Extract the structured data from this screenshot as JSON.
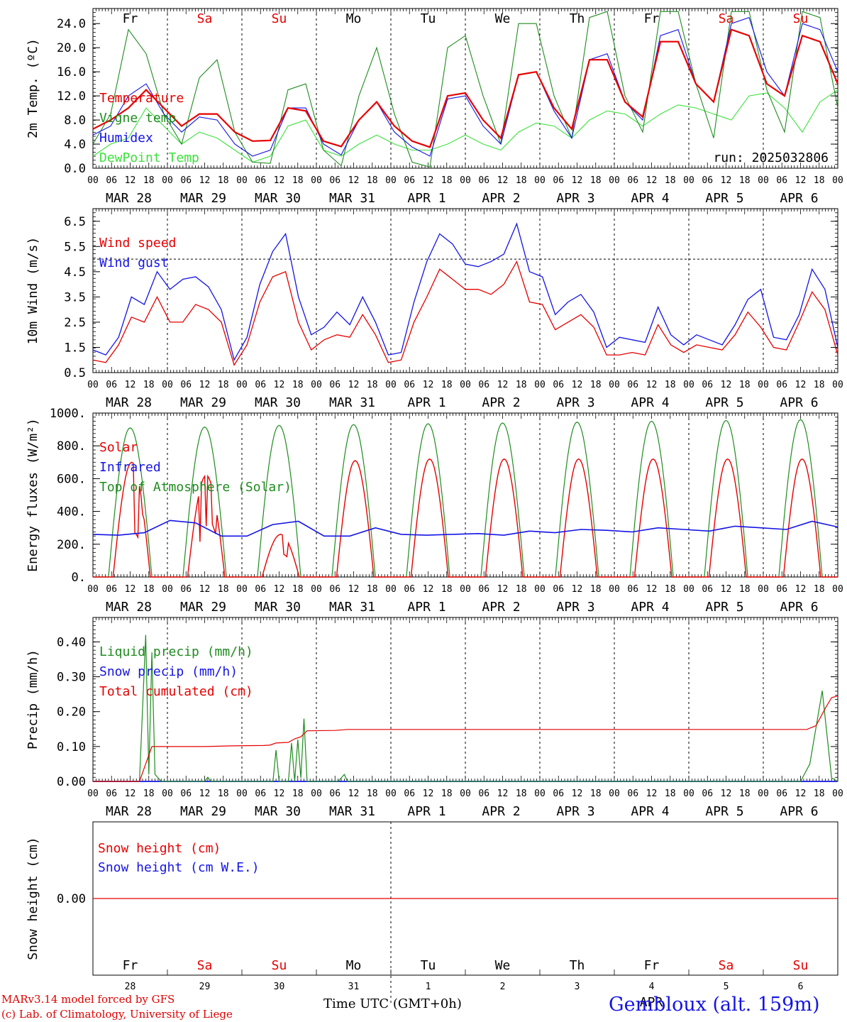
{
  "days": [
    {
      "dow": "Fr",
      "month": "MAR",
      "day": "28",
      "weekend": false
    },
    {
      "dow": "Sa",
      "month": "MAR",
      "day": "29",
      "weekend": true
    },
    {
      "dow": "Su",
      "month": "MAR",
      "day": "30",
      "weekend": true
    },
    {
      "dow": "Mo",
      "month": "MAR",
      "day": "31",
      "weekend": false
    },
    {
      "dow": "Tu",
      "month": "APR",
      "day": "1",
      "weekend": false
    },
    {
      "dow": "We",
      "month": "APR",
      "day": "2",
      "weekend": false
    },
    {
      "dow": "Th",
      "month": "APR",
      "day": "3",
      "weekend": false
    },
    {
      "dow": "Fr",
      "month": "APR",
      "day": "4",
      "weekend": false
    },
    {
      "dow": "Sa",
      "month": "APR",
      "day": "5",
      "weekend": true
    },
    {
      "dow": "Su",
      "month": "APR",
      "day": "6",
      "weekend": true
    }
  ],
  "hour_labels": [
    "00",
    "06",
    "12",
    "18"
  ],
  "final_hour_label": "00",
  "colors": {
    "red": "#e60000",
    "green": "#1e8c1e",
    "blue": "#1414e6",
    "lightgreen": "#3ce13c",
    "weekend": "#e60000",
    "weekday": "#000000"
  },
  "chart_data": [
    {
      "type": "line",
      "id": "temp",
      "ylabel": "2m Temp. (ºC)",
      "ylim": [
        0,
        26.5
      ],
      "yticks": [
        "0.0",
        "4.0",
        "8.0",
        "12.0",
        "16.0",
        "20.0",
        "24.0"
      ],
      "yticks_values": [
        0,
        4,
        8,
        12,
        16,
        20,
        24
      ],
      "show_day_names": true,
      "run_label": "run: 2025032806",
      "x_hours_step": 12,
      "series": [
        {
          "name": "Temperature",
          "color": "red",
          "values": [
            6.5,
            8,
            10,
            13,
            10,
            7,
            9,
            9,
            6,
            4.5,
            4.6,
            10,
            9.5,
            4.5,
            3.6,
            8,
            11,
            7,
            4.5,
            3.5,
            12,
            12.5,
            8,
            5,
            15.5,
            16,
            10,
            6.5,
            18,
            18,
            11,
            8.5,
            21,
            21,
            14,
            11,
            23,
            22,
            14,
            12,
            22,
            21,
            14
          ]
        },
        {
          "name": "Vigne temp",
          "color": "green",
          "values": [
            4,
            9,
            23,
            19,
            9,
            4,
            15,
            18,
            6,
            1,
            0.8,
            13,
            14,
            3,
            0.4,
            12,
            20,
            9,
            1,
            0.2,
            20,
            22,
            12,
            4,
            24,
            24,
            12,
            5,
            25,
            26,
            12,
            6,
            26,
            26,
            14,
            5,
            26,
            26,
            13,
            6,
            26,
            25,
            10
          ]
        },
        {
          "name": "Humidex",
          "color": "blue",
          "values": [
            5.5,
            7,
            12,
            14,
            9,
            6,
            8.5,
            8,
            4,
            2,
            3,
            10,
            10,
            4,
            2.2,
            8,
            11,
            6,
            3.5,
            2,
            11.5,
            12,
            7,
            4,
            15.5,
            16,
            9.5,
            5,
            18,
            19,
            11,
            8,
            22,
            23,
            14,
            11,
            24,
            25,
            16,
            12,
            24,
            23,
            16
          ]
        },
        {
          "name": "DewPoint Temp",
          "color": "lightgreen",
          "values": [
            2,
            4,
            5,
            10,
            7,
            4,
            6,
            5,
            3,
            1,
            2,
            7,
            8,
            3,
            2,
            4,
            5.5,
            4,
            3,
            3,
            4,
            5.5,
            4,
            3,
            6,
            7.5,
            7,
            5,
            8,
            9.5,
            9,
            7,
            9,
            10.5,
            10,
            9,
            8,
            12,
            12.5,
            10,
            6,
            11,
            13
          ]
        }
      ]
    },
    {
      "type": "line",
      "id": "wind",
      "ylabel": "10m Wind (m/s)",
      "ylim": [
        0.5,
        7
      ],
      "yticks": [
        "0.5",
        "1.5",
        "2.5",
        "3.5",
        "4.5",
        "5.5",
        "6.5"
      ],
      "yticks_values": [
        0.5,
        1.5,
        2.5,
        3.5,
        4.5,
        5.5,
        6.5
      ],
      "reference_line": 5,
      "show_day_names": false,
      "x_hours_step": 6,
      "series": [
        {
          "name": "Wind speed",
          "color": "red",
          "values": [
            1,
            0.9,
            1.6,
            2.7,
            2.5,
            3.5,
            2.5,
            2.5,
            3.2,
            3,
            2.5,
            0.8,
            1.6,
            3.3,
            4.3,
            4.5,
            2.5,
            1.4,
            1.8,
            2,
            1.9,
            2.8,
            2,
            0.9,
            1,
            2.5,
            3.5,
            4.6,
            4.2,
            3.8,
            3.8,
            3.6,
            4,
            4.9,
            3.3,
            3.2,
            2.2,
            2.5,
            2.8,
            2.3,
            1.2,
            1.2,
            1.3,
            1.2,
            2.4,
            1.6,
            1.3,
            1.6,
            1.5,
            1.4,
            2,
            2.9,
            2.3,
            1.5,
            1.4,
            2.5,
            3.7,
            3,
            1.2
          ]
        },
        {
          "name": "Wind gust",
          "color": "blue",
          "values": [
            1.4,
            1.2,
            1.9,
            3.5,
            3.2,
            4.5,
            3.8,
            4.2,
            4.3,
            3.9,
            3,
            1,
            1.9,
            4,
            5.3,
            6,
            3.5,
            2,
            2.3,
            2.9,
            2.4,
            3.5,
            2.5,
            1.2,
            1.3,
            3.3,
            4.9,
            6,
            5.6,
            4.8,
            4.7,
            4.9,
            5.2,
            6.4,
            4.5,
            4.3,
            2.8,
            3.3,
            3.6,
            2.9,
            1.5,
            1.9,
            1.8,
            1.7,
            3.1,
            2,
            1.6,
            2,
            1.8,
            1.6,
            2.4,
            3.4,
            3.8,
            1.9,
            1.8,
            2.8,
            4.6,
            3.8,
            1.5
          ]
        }
      ]
    },
    {
      "type": "line",
      "id": "energy",
      "ylabel": "Energy fluxes (W/m²)",
      "ylim": [
        0,
        1000
      ],
      "yticks": [
        "0.",
        "200.",
        "400.",
        "600.",
        "800.",
        "1000."
      ],
      "yticks_values": [
        0,
        200,
        400,
        600,
        800,
        1000
      ],
      "show_day_names": false,
      "series": [
        {
          "name": "Solar",
          "color": "red",
          "peaks": [
            700,
            620,
            260,
            710,
            720,
            720,
            720,
            720,
            720,
            720
          ]
        },
        {
          "name": "Infrared",
          "color": "blue",
          "values": [
            260,
            255,
            270,
            345,
            330,
            250,
            250,
            320,
            340,
            250,
            250,
            300,
            260,
            255,
            260,
            265,
            255,
            280,
            270,
            290,
            285,
            275,
            300,
            290,
            280,
            310,
            300,
            290,
            340,
            305
          ]
        },
        {
          "name": "Top of Atmosphere (Solar)",
          "color": "green",
          "peaks": [
            910,
            915,
            925,
            930,
            935,
            940,
            945,
            950,
            955,
            960
          ]
        }
      ]
    },
    {
      "type": "line",
      "id": "precip",
      "ylabel": "Precip (mm/h)",
      "ylim": [
        0,
        0.47
      ],
      "yticks": [
        "0.00",
        "0.10",
        "0.20",
        "0.30",
        "0.40"
      ],
      "yticks_values": [
        0,
        0.1,
        0.2,
        0.3,
        0.4
      ],
      "show_day_names": false,
      "series": [
        {
          "name": "Liquid precip (mm/h)",
          "color": "green",
          "points": [
            [
              0,
              0
            ],
            [
              15,
              0
            ],
            [
              17,
              0.42
            ],
            [
              18,
              0.02
            ],
            [
              19,
              0.37
            ],
            [
              20,
              0.02
            ],
            [
              22,
              0
            ],
            [
              36,
              0
            ],
            [
              37,
              0.012
            ],
            [
              38,
              0
            ],
            [
              58,
              0
            ],
            [
              59,
              0.09
            ],
            [
              60,
              0
            ],
            [
              63,
              0
            ],
            [
              64,
              0.11
            ],
            [
              65,
              0
            ],
            [
              66,
              0.12
            ],
            [
              67,
              0.01
            ],
            [
              68,
              0.18
            ],
            [
              69,
              0
            ],
            [
              79,
              0
            ],
            [
              81,
              0.02
            ],
            [
              82,
              0
            ],
            [
              228,
              0
            ],
            [
              231,
              0.05
            ],
            [
              235,
              0.26
            ],
            [
              238,
              0.01
            ],
            [
              240,
              0
            ]
          ]
        },
        {
          "name": "Snow precip (mm/h)",
          "color": "blue",
          "points": [
            [
              0,
              0
            ],
            [
              240,
              0
            ]
          ]
        },
        {
          "name": "Total cumulated (cm)",
          "color": "red",
          "points": [
            [
              0,
              0
            ],
            [
              15,
              0
            ],
            [
              17,
              0.05
            ],
            [
              19,
              0.1
            ],
            [
              36,
              0.1
            ],
            [
              45,
              0.102
            ],
            [
              55,
              0.103
            ],
            [
              57,
              0.104
            ],
            [
              59,
              0.11
            ],
            [
              63,
              0.112
            ],
            [
              65,
              0.122
            ],
            [
              67,
              0.128
            ],
            [
              69,
              0.145
            ],
            [
              78,
              0.146
            ],
            [
              82,
              0.149
            ],
            [
              230,
              0.149
            ],
            [
              233,
              0.16
            ],
            [
              236,
              0.21
            ],
            [
              238,
              0.24
            ],
            [
              240,
              0.245
            ]
          ]
        }
      ]
    },
    {
      "type": "line",
      "id": "snow",
      "ylabel": "Snow height (cm)",
      "ylim": [
        -0.1,
        0.1
      ],
      "yticks": [
        "0.00"
      ],
      "yticks_values": [
        0
      ],
      "show_day_names": true,
      "series": [
        {
          "name": "Snow height (cm)",
          "color": "red",
          "points": [
            [
              0,
              0
            ],
            [
              240,
              0
            ]
          ]
        },
        {
          "name": "Snow height (cm W.E.)",
          "color": "blue",
          "points": []
        }
      ]
    }
  ],
  "footer": {
    "model": "MARv3.14 model forced by GFS",
    "copyright": "(c) Lab. of Climatology, University of Liege",
    "axis_title": "Time UTC (GMT+0h)",
    "station": "Gembloux (alt. 159m)",
    "overlap_label": "APR"
  }
}
